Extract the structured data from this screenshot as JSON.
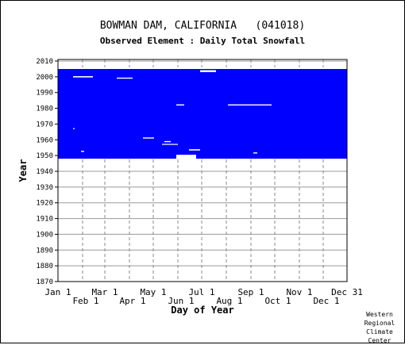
{
  "chart_data": {
    "type": "heatmap",
    "title": "BOWMAN DAM, CALIFORNIA   (041018)",
    "subtitle": "Observed Element : Daily Total Snowfall",
    "xlabel": "Day of Year",
    "ylabel": "Year",
    "y_ticks": [
      1870,
      1880,
      1890,
      1900,
      1910,
      1920,
      1930,
      1940,
      1950,
      1960,
      1970,
      1980,
      1990,
      2000,
      2010
    ],
    "ylim": [
      1870,
      2011
    ],
    "x_ticks_top_row": [
      "Jan 1",
      "Mar 1",
      "May 1",
      "Jul 1",
      "Sep 1",
      "Nov 1",
      "Dec 31"
    ],
    "x_ticks_bottom_row": [
      "Feb 1",
      "Apr 1",
      "Jun 1",
      "Aug 1",
      "Oct 1",
      "Dec 1"
    ],
    "x_tick_days": [
      1,
      32,
      60,
      91,
      121,
      152,
      182,
      213,
      244,
      274,
      305,
      335,
      365
    ],
    "grid": true,
    "data_color": "#0000ff",
    "record_start_year": 1948,
    "record_end_year": 2005,
    "gaps": [
      {
        "y0": 2005,
        "y1": 2006,
        "d0": 1,
        "d1": 365
      },
      {
        "y0": 2003,
        "y1": 2004.2,
        "d0": 180,
        "d1": 200
      },
      {
        "y0": 1999.6,
        "y1": 2000.4,
        "d0": 20,
        "d1": 45
      },
      {
        "y0": 1998.8,
        "y1": 1999.5,
        "d0": 75,
        "d1": 95
      },
      {
        "y0": 1981.8,
        "y1": 1982.5,
        "d0": 150,
        "d1": 160
      },
      {
        "y0": 1981.8,
        "y1": 1982.5,
        "d0": 215,
        "d1": 270
      },
      {
        "y0": 1966.8,
        "y1": 1967.4,
        "d0": 20,
        "d1": 22
      },
      {
        "y0": 1960.8,
        "y1": 1961.5,
        "d0": 108,
        "d1": 122
      },
      {
        "y0": 1958.5,
        "y1": 1959.2,
        "d0": 135,
        "d1": 143
      },
      {
        "y0": 1956.8,
        "y1": 1957.4,
        "d0": 132,
        "d1": 152
      },
      {
        "y0": 1953.2,
        "y1": 1954,
        "d0": 166,
        "d1": 180
      },
      {
        "y0": 1952.3,
        "y1": 1953,
        "d0": 30,
        "d1": 34
      },
      {
        "y0": 1951.3,
        "y1": 1952,
        "d0": 247,
        "d1": 252
      },
      {
        "y0": 1947.9,
        "y1": 1950.5,
        "d0": 150,
        "d1": 175
      }
    ],
    "credit": [
      "Western",
      "Regional",
      "Climate",
      "Center"
    ]
  }
}
